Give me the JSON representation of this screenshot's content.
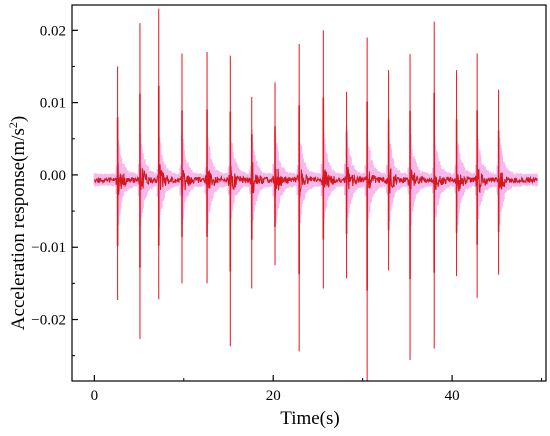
{
  "chart_data": {
    "type": "line",
    "title": "",
    "xlabel": "Time(s)",
    "ylabel": "Acceleration response(m/s",
    "ylabel_superscript": "2",
    "ylabel_suffix": ")",
    "xlim": [
      -2.5,
      50.5
    ],
    "ylim": [
      -0.0285,
      0.0235
    ],
    "x_ticks": [
      0,
      20,
      40
    ],
    "x_tick_labels": [
      "0",
      "20",
      "40"
    ],
    "y_ticks": [
      0.02,
      0.01,
      0.0,
      -0.01,
      -0.02
    ],
    "y_tick_labels": [
      "0.02",
      "0.01",
      "0.00",
      "−0.01",
      "−0.02"
    ],
    "grid": false,
    "signal_start": 0.0,
    "signal_end": 49.5,
    "baseline": -0.0007,
    "series": [
      {
        "color": "#e8141e",
        "halo_color": "#f5a0e6",
        "peaks": [
          {
            "t": 2.6,
            "max": 0.015,
            "min": -0.0173
          },
          {
            "t": 5.1,
            "max": 0.021,
            "min": -0.0227
          },
          {
            "t": 7.2,
            "max": 0.023,
            "min": -0.0172
          },
          {
            "t": 9.8,
            "max": 0.0168,
            "min": -0.015
          },
          {
            "t": 12.6,
            "max": 0.017,
            "min": -0.015
          },
          {
            "t": 15.2,
            "max": 0.0165,
            "min": -0.0237
          },
          {
            "t": 17.6,
            "max": 0.0108,
            "min": -0.0157
          },
          {
            "t": 20.2,
            "max": 0.0128,
            "min": -0.0125
          },
          {
            "t": 22.9,
            "max": 0.0181,
            "min": -0.0244
          },
          {
            "t": 25.6,
            "max": 0.02,
            "min": -0.0157
          },
          {
            "t": 28.2,
            "max": 0.0115,
            "min": -0.0143
          },
          {
            "t": 30.5,
            "max": 0.019,
            "min": -0.0285
          },
          {
            "t": 32.9,
            "max": 0.0145,
            "min": -0.0132
          },
          {
            "t": 35.3,
            "max": 0.0167,
            "min": -0.0256
          },
          {
            "t": 38.0,
            "max": 0.0212,
            "min": -0.024
          },
          {
            "t": 40.5,
            "max": 0.0145,
            "min": -0.014
          },
          {
            "t": 42.8,
            "max": 0.0168,
            "min": -0.017
          },
          {
            "t": 45.2,
            "max": 0.0118,
            "min": -0.0138
          }
        ]
      }
    ]
  }
}
